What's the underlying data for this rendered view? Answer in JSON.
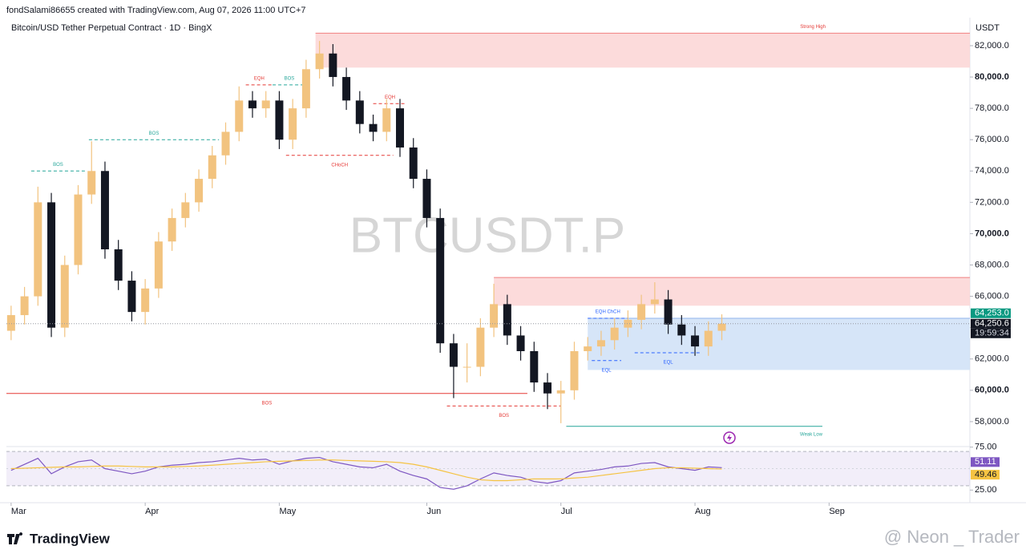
{
  "header": "fondSalami86655 created with TradingView.com, Aug 07, 2026 11:00 UTC+7",
  "footer_logo": "TradingView",
  "author_watermark": "@ Neon _ Trader",
  "chart_data": {
    "type": "candlestick",
    "title": "Bitcoin/USD Tether Perpetual Contract · 1D · BingX",
    "watermark": "BTCUSDT.P",
    "y_axis_label": "USDT",
    "xlim": [
      -0.35,
      71.5
    ],
    "xticks": [
      {
        "value": 0,
        "label": "Mar"
      },
      {
        "value": 10,
        "label": "Apr"
      },
      {
        "value": 20,
        "label": "May"
      },
      {
        "value": 31,
        "label": "Jun"
      },
      {
        "value": 41,
        "label": "Jul"
      },
      {
        "value": 51,
        "label": "Aug"
      },
      {
        "value": 61,
        "label": "Sep"
      }
    ],
    "ylim": [
      56460,
      83790
    ],
    "yticks": [
      {
        "value": 58000,
        "label": "58,000.0"
      },
      {
        "value": 60000,
        "label": "60,000.0"
      },
      {
        "value": 62000,
        "label": "62,000.0"
      },
      {
        "value": 64000,
        "label": "64,000.0"
      },
      {
        "value": 66000,
        "label": "66,000.0"
      },
      {
        "value": 68000,
        "label": "68,000.0"
      },
      {
        "value": 70000,
        "label": "70,000.0"
      },
      {
        "value": 72000,
        "label": "72,000.0"
      },
      {
        "value": 74000,
        "label": "74,000.0"
      },
      {
        "value": 76000,
        "label": "76,000.0"
      },
      {
        "value": 78000,
        "label": "78,000.0"
      },
      {
        "value": 80000,
        "label": "80,000.0"
      },
      {
        "value": 82000,
        "label": "82,000.0"
      }
    ],
    "up_color": "#f2c37f",
    "down_color": "#131722",
    "open": [
      63800,
      64800,
      66000,
      72000,
      64000,
      68000,
      72500,
      74000,
      69000,
      67000,
      65000,
      66500,
      69500,
      71000,
      72000,
      73500,
      75000,
      76500,
      78500,
      78000,
      78500,
      76000,
      78000,
      80500,
      81500,
      80000,
      78500,
      77000,
      76500,
      78000,
      75500,
      73500,
      71000,
      63000,
      61500,
      61500,
      64000,
      65500,
      63500,
      62500,
      60500,
      59800,
      60000,
      62500,
      62800,
      63200,
      64000,
      64500,
      65500,
      65800,
      64200,
      63500,
      62800,
      63800
    ],
    "high": [
      65400,
      66600,
      73000,
      72600,
      68600,
      73100,
      75900,
      74600,
      69600,
      67600,
      67100,
      70100,
      71600,
      72600,
      74100,
      75600,
      77100,
      79400,
      79100,
      79100,
      79100,
      78600,
      81100,
      82300,
      82100,
      80600,
      79100,
      77600,
      78600,
      78600,
      76100,
      74100,
      71600,
      63600,
      63000,
      64600,
      66800,
      66100,
      64100,
      63100,
      61100,
      60600,
      63100,
      63400,
      63800,
      64600,
      65100,
      66100,
      66900,
      66400,
      64800,
      64100,
      64400,
      64850
    ],
    "low": [
      63200,
      64200,
      65400,
      63400,
      63400,
      67400,
      71900,
      68400,
      66400,
      64400,
      64200,
      65900,
      68900,
      70400,
      71400,
      72900,
      74400,
      75900,
      77400,
      77400,
      75400,
      75400,
      77400,
      79900,
      79400,
      77900,
      76400,
      75900,
      75900,
      74900,
      72900,
      70400,
      62400,
      59500,
      60500,
      60900,
      63400,
      62900,
      61900,
      59900,
      58800,
      57900,
      59400,
      61900,
      62200,
      62600,
      63400,
      63900,
      64900,
      63600,
      62900,
      62200,
      62200,
      63200
    ],
    "close": [
      64800,
      66000,
      72000,
      64000,
      68000,
      72500,
      74000,
      69000,
      67000,
      65000,
      66500,
      69500,
      71000,
      72000,
      73500,
      75000,
      76500,
      78500,
      78000,
      78500,
      76000,
      78000,
      80500,
      81500,
      80000,
      78500,
      77000,
      76500,
      78000,
      75500,
      73500,
      71000,
      63000,
      61500,
      61500,
      64000,
      65500,
      63500,
      62500,
      60500,
      59800,
      60000,
      62500,
      62800,
      63200,
      64000,
      64500,
      65500,
      65800,
      64200,
      63500,
      62800,
      63800,
      64250.6
    ],
    "zones": [
      {
        "label": "Strong High",
        "top": 82800,
        "bottom": 80600,
        "from": 22.7,
        "color": "#fbd5d5"
      },
      {
        "top": 67200,
        "bottom": 65400,
        "from": 36,
        "color": "#fbd5d5"
      },
      {
        "top": 64600,
        "bottom": 61300,
        "from": 43,
        "color": "#cfe0f7"
      }
    ],
    "annotations": [
      {
        "label": "BOS",
        "price": 74000,
        "from": 1.5,
        "to": 5.5,
        "color": "#26a69a",
        "style": "dashed"
      },
      {
        "label": "BOS",
        "price": 76000,
        "from": 5.8,
        "to": 15.5,
        "color": "#26a69a",
        "style": "dashed"
      },
      {
        "label": "EQH",
        "price": 79500,
        "from": 17.5,
        "to": 19.5,
        "color": "#e53935",
        "style": "dashed"
      },
      {
        "label": "BOS",
        "price": 79500,
        "from": 19.5,
        "to": 22,
        "color": "#26a69a",
        "style": "dashed"
      },
      {
        "label": "EQH",
        "price": 78300,
        "from": 27,
        "to": 29.5,
        "color": "#e53935",
        "style": "dashed"
      },
      {
        "label": "CHoCH",
        "price": 75000,
        "from": 20.5,
        "to": 28.5,
        "color": "#e53935",
        "style": "dashed",
        "label_side": "below"
      },
      {
        "label": "BOS",
        "price": 59800,
        "from": -0.35,
        "to": 38.5,
        "color": "#e53935",
        "style": "solid",
        "label_side": "below"
      },
      {
        "label": "BOS",
        "price": 59000,
        "from": 32.5,
        "to": 41,
        "color": "#e53935",
        "style": "dashed",
        "label_side": "below"
      },
      {
        "label": "Weak Low",
        "price": 57700,
        "from": 41.4,
        "to": 60.5,
        "color": "#26a69a",
        "style": "solid",
        "label_side": "end"
      },
      {
        "label": "EQH ChCH",
        "price": 64600,
        "from": 43,
        "to": 46,
        "color": "#2962ff",
        "style": "dashed"
      },
      {
        "label": "EQL",
        "price": 61900,
        "from": 43.3,
        "to": 45.5,
        "color": "#2962ff",
        "style": "dashed",
        "label_side": "below"
      },
      {
        "label": "EQL",
        "price": 62400,
        "from": 46.5,
        "to": 51.5,
        "color": "#2962ff",
        "style": "dashed",
        "label_side": "below"
      }
    ],
    "price_tags": [
      {
        "value": 64253,
        "label": "64,253.0",
        "color": "#089981"
      },
      {
        "value": 64250.6,
        "label": "64,250.6",
        "color": "#131722"
      }
    ],
    "countdown": "19:59:34",
    "rsi": {
      "ylim": [
        15,
        85
      ],
      "yticks": [
        {
          "value": 75,
          "label": "75.00"
        },
        {
          "value": 25,
          "label": "25.00"
        }
      ],
      "band": [
        30,
        70
      ],
      "series": [
        {
          "color": "#7e57c2",
          "values": [
            48,
            55,
            62,
            44,
            52,
            58,
            60,
            50,
            47,
            44,
            47,
            52,
            54,
            55,
            57,
            58,
            60,
            62,
            60,
            61,
            55,
            59,
            62,
            63,
            58,
            55,
            52,
            51,
            55,
            47,
            42,
            38,
            28,
            26,
            30,
            38,
            45,
            42,
            40,
            35,
            33,
            36,
            45,
            47,
            49,
            52,
            53,
            56,
            57,
            52,
            50,
            48,
            52,
            51.11
          ]
        },
        {
          "color": "#f5c342",
          "values": [
            50,
            50.5,
            51,
            51.5,
            52,
            52,
            52.5,
            53,
            53,
            52.5,
            52,
            52,
            52,
            52.5,
            53,
            54,
            55,
            56,
            57,
            58,
            58.5,
            59,
            59.5,
            60,
            60,
            59.5,
            59,
            58.5,
            58,
            57,
            55,
            52,
            48,
            44,
            40,
            37,
            36,
            36,
            37,
            38,
            38,
            38,
            39,
            40,
            42,
            44,
            46,
            48,
            50,
            51,
            51,
            50.5,
            50,
            49.46
          ]
        }
      ]
    }
  }
}
